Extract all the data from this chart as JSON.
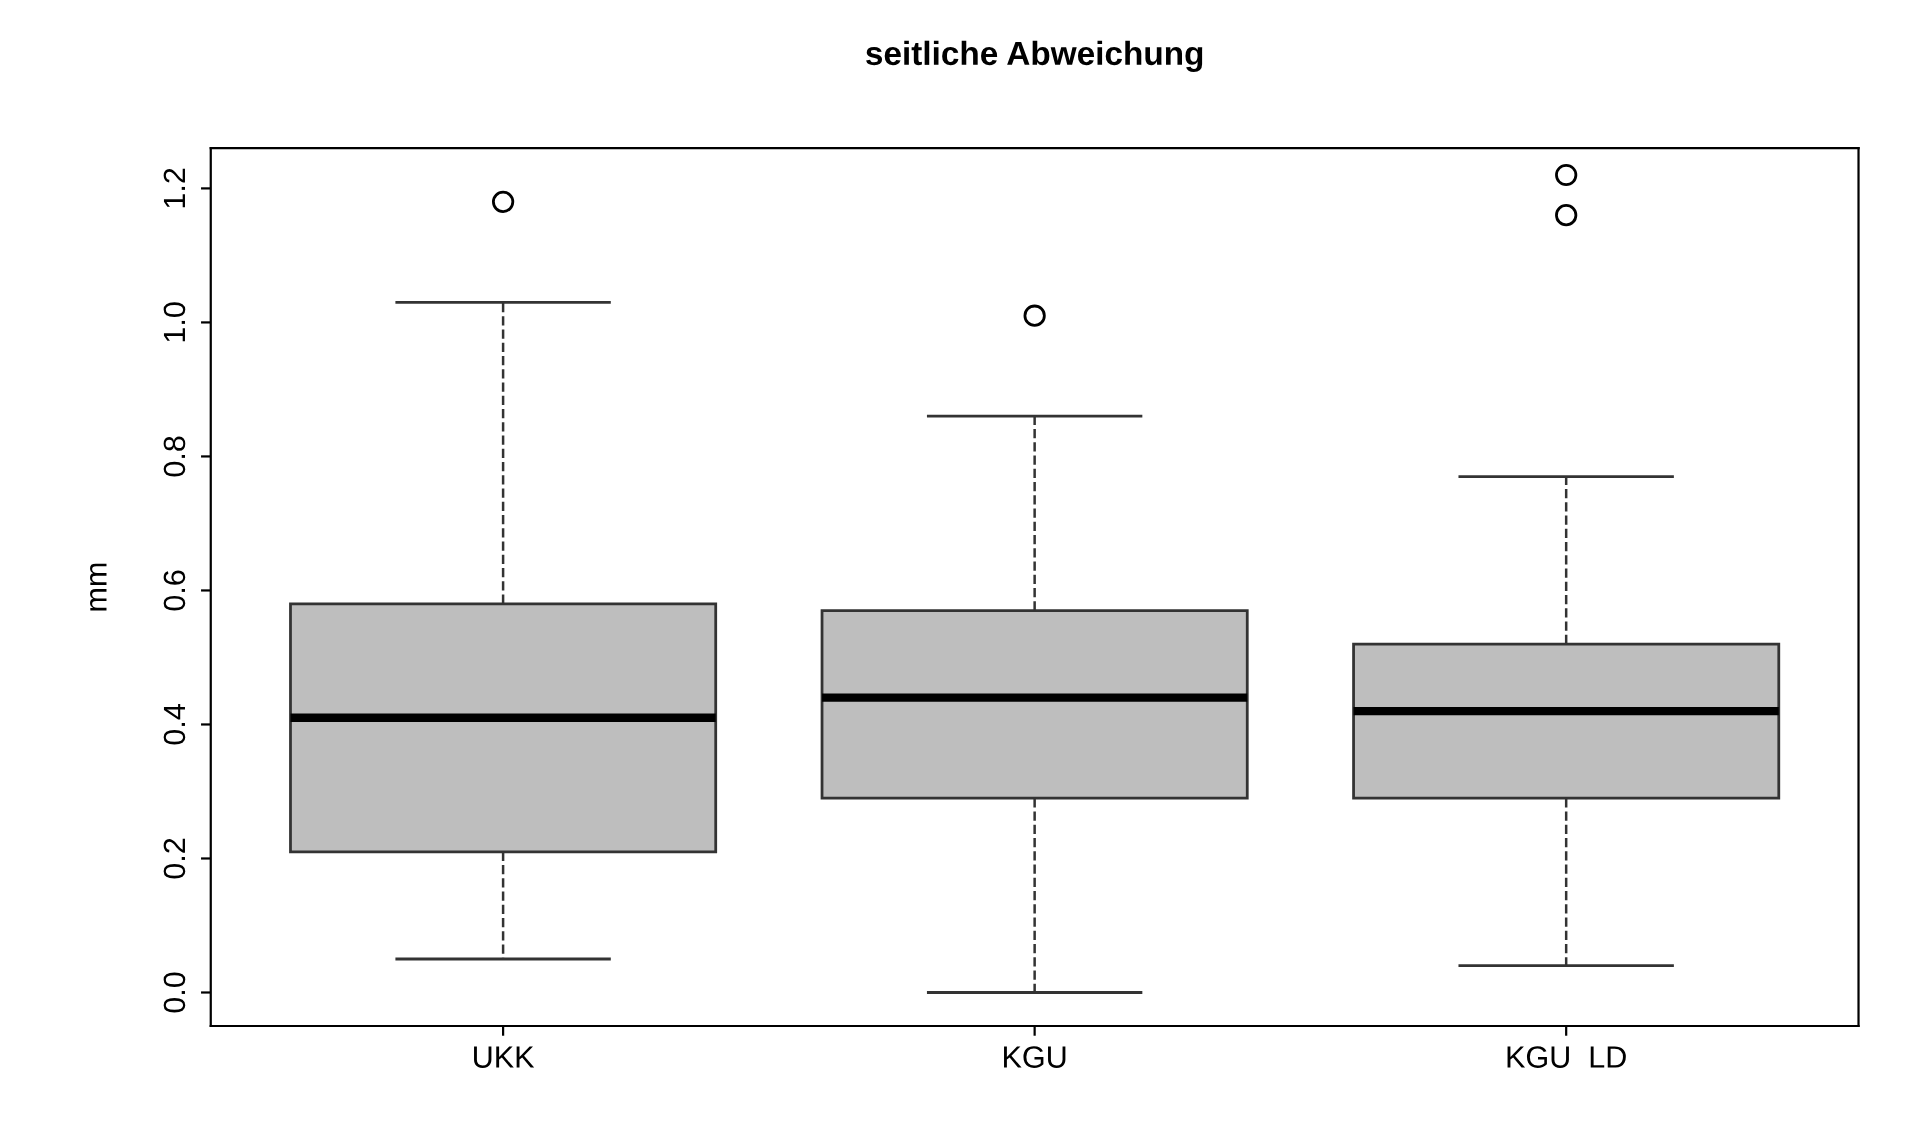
{
  "chart_data": {
    "type": "box",
    "title": "seitliche Abweichung",
    "ylabel": "mm",
    "categories": [
      "UKK",
      "KGU",
      "KGU  LD"
    ],
    "color": "#bebebe",
    "boxes": [
      {
        "low": 0.05,
        "q1": 0.21,
        "median": 0.41,
        "q3": 0.58,
        "high": 1.03,
        "outliers": [
          1.18
        ]
      },
      {
        "low": 0.0,
        "q1": 0.29,
        "median": 0.44,
        "q3": 0.57,
        "high": 0.86,
        "outliers": [
          1.01
        ]
      },
      {
        "low": 0.04,
        "q1": 0.29,
        "median": 0.42,
        "q3": 0.52,
        "high": 0.77,
        "outliers": [
          1.22,
          1.16
        ]
      }
    ],
    "ylim": [
      -0.05,
      1.26
    ],
    "yticks": [
      {
        "value": 0,
        "label": "0.0"
      },
      0.2,
      0.4,
      0.6,
      0.8,
      {
        "value": 1,
        "label": "1.0"
      },
      1.2
    ],
    "grid": false
  }
}
